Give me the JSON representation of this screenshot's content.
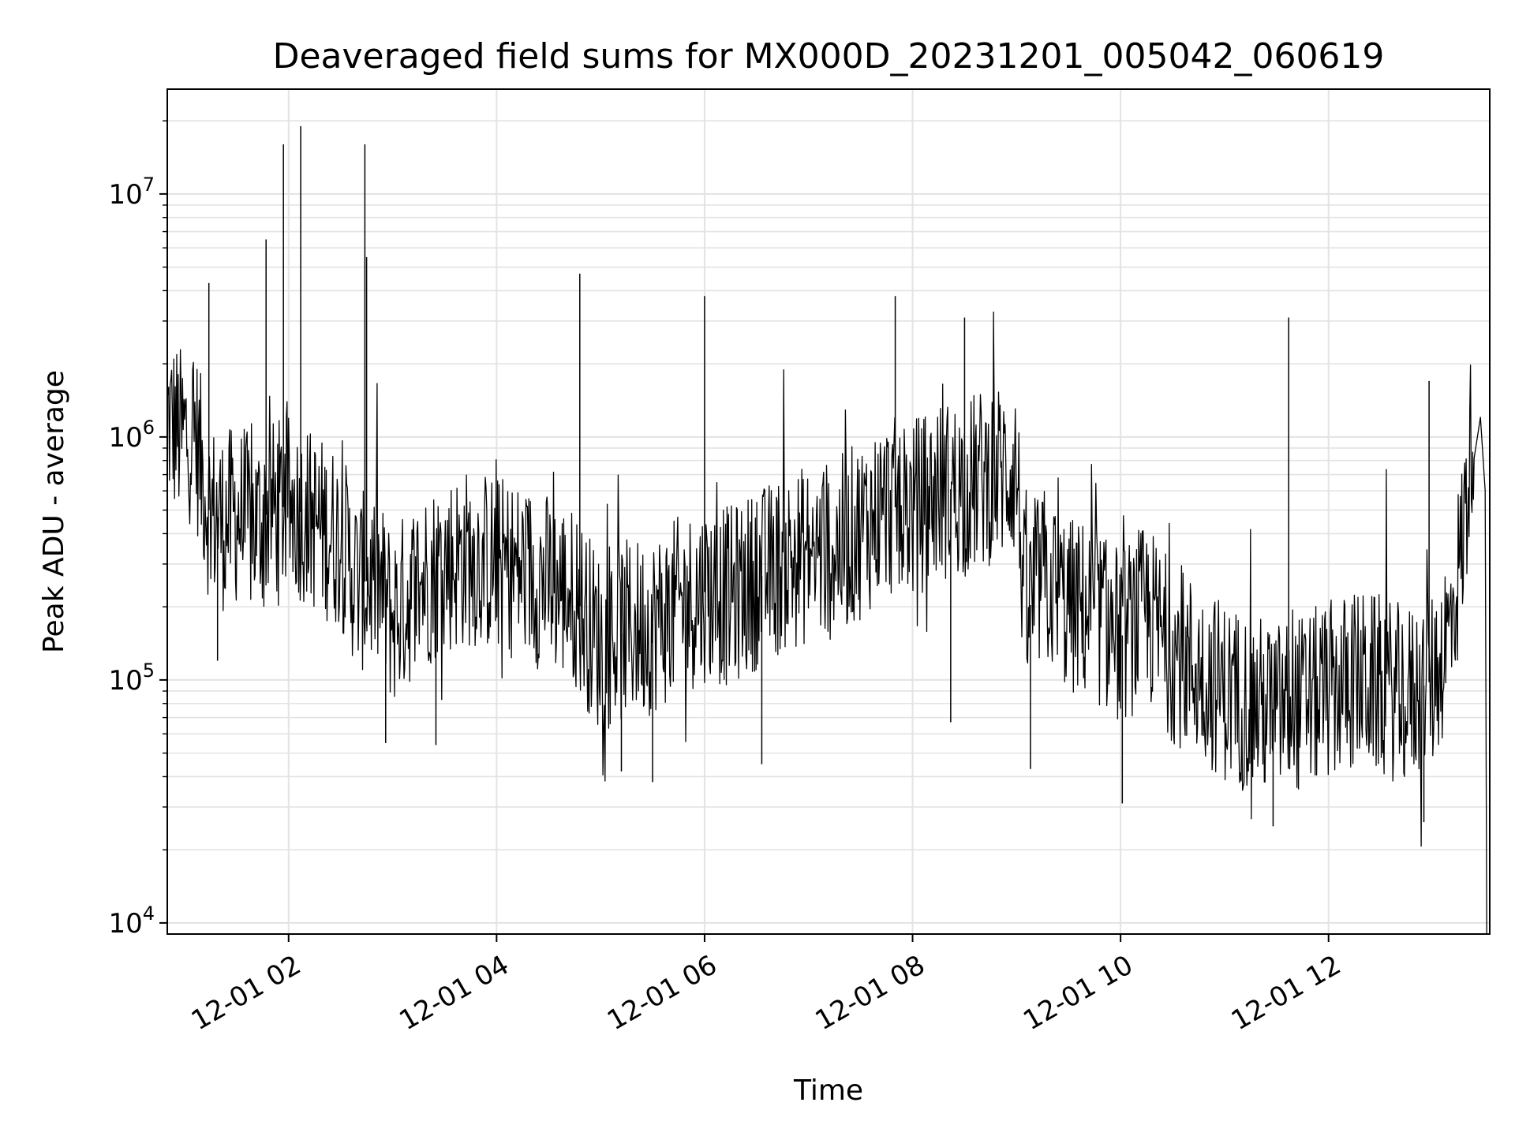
{
  "chart_data": {
    "type": "line",
    "title": "Deaveraged field sums for MX000D_20231201_005042_060619",
    "xlabel": "Time",
    "ylabel": "Peak ADU - average",
    "yscale": "log",
    "ylim": [
      9000,
      27000000
    ],
    "xlim": [
      "2023-12-01 00:50",
      "2023-12-01 13:33"
    ],
    "x_ticks": [
      {
        "value": "2023-12-01 02:00",
        "label": "12-01 02"
      },
      {
        "value": "2023-12-01 04:00",
        "label": "12-01 04"
      },
      {
        "value": "2023-12-01 06:00",
        "label": "12-01 06"
      },
      {
        "value": "2023-12-01 08:00",
        "label": "12-01 08"
      },
      {
        "value": "2023-12-01 10:00",
        "label": "12-01 10"
      },
      {
        "value": "2023-12-01 12:00",
        "label": "12-01 12"
      }
    ],
    "y_ticks": [
      {
        "value": 10000,
        "base": "10",
        "exp": "4"
      },
      {
        "value": 100000,
        "base": "10",
        "exp": "5"
      },
      {
        "value": 1000000,
        "base": "10",
        "exp": "6"
      },
      {
        "value": 10000000,
        "base": "10",
        "exp": "7"
      }
    ],
    "grid": true,
    "line_color": "#000000",
    "grid_color": "#e3e3e3",
    "series": [
      {
        "x": [
          "2023-12-01 00:50",
          "2023-12-01 00:58",
          "2023-12-01 01:06",
          "2023-12-01 01:14",
          "2023-12-01 01:22",
          "2023-12-01 01:30",
          "2023-12-01 01:40",
          "2023-12-01 01:50",
          "2023-12-01 02:00",
          "2023-12-01 02:10",
          "2023-12-01 02:20",
          "2023-12-01 02:30",
          "2023-12-01 02:40",
          "2023-12-01 02:50",
          "2023-12-01 03:00",
          "2023-12-01 03:15",
          "2023-12-01 03:30",
          "2023-12-01 03:45",
          "2023-12-01 04:00",
          "2023-12-01 04:15",
          "2023-12-01 04:30",
          "2023-12-01 04:45",
          "2023-12-01 05:00",
          "2023-12-01 05:15",
          "2023-12-01 05:30",
          "2023-12-01 05:45",
          "2023-12-01 06:00",
          "2023-12-01 06:15",
          "2023-12-01 06:30",
          "2023-12-01 06:45",
          "2023-12-01 07:00",
          "2023-12-01 07:15",
          "2023-12-01 07:30",
          "2023-12-01 07:45",
          "2023-12-01 08:00",
          "2023-12-01 08:15",
          "2023-12-01 08:30",
          "2023-12-01 08:45",
          "2023-12-01 09:00",
          "2023-12-01 09:05",
          "2023-12-01 09:15",
          "2023-12-01 09:30",
          "2023-12-01 09:45",
          "2023-12-01 10:00",
          "2023-12-01 10:15",
          "2023-12-01 10:30",
          "2023-12-01 10:45",
          "2023-12-01 11:00",
          "2023-12-01 11:15",
          "2023-12-01 11:30",
          "2023-12-01 11:45",
          "2023-12-01 12:00",
          "2023-12-01 12:15",
          "2023-12-01 12:30",
          "2023-12-01 12:45",
          "2023-12-01 13:00",
          "2023-12-01 13:10",
          "2023-12-01 13:18",
          "2023-12-01 13:24"
        ],
        "y": [
          1200000,
          1000000,
          1050000,
          500000,
          450000,
          480000,
          430000,
          500000,
          520000,
          480000,
          420000,
          380000,
          250000,
          260000,
          180000,
          250000,
          300000,
          320000,
          300000,
          280000,
          250000,
          220000,
          140000,
          160000,
          170000,
          200000,
          230000,
          220000,
          260000,
          300000,
          330000,
          340000,
          420000,
          520000,
          500000,
          600000,
          620000,
          700000,
          750000,
          180000,
          270000,
          200000,
          190000,
          150000,
          190000,
          130000,
          110000,
          90000,
          80000,
          75000,
          80000,
          90000,
          100000,
          95000,
          85000,
          100000,
          160000,
          400000,
          1400000
        ]
      }
    ],
    "spikes": [
      {
        "x": "2023-12-01 01:14",
        "y": 4300000
      },
      {
        "x": "2023-12-01 01:47",
        "y": 6500000
      },
      {
        "x": "2023-12-01 01:57",
        "y": 16000000
      },
      {
        "x": "2023-12-01 02:07",
        "y": 19000000
      },
      {
        "x": "2023-12-01 02:44",
        "y": 16000000
      },
      {
        "x": "2023-12-01 02:45",
        "y": 5500000
      },
      {
        "x": "2023-12-01 04:48",
        "y": 4700000
      },
      {
        "x": "2023-12-01 06:00",
        "y": 3800000
      },
      {
        "x": "2023-12-01 07:50",
        "y": 3800000
      },
      {
        "x": "2023-12-01 08:30",
        "y": 3100000
      },
      {
        "x": "2023-12-01 11:37",
        "y": 3100000
      },
      {
        "x": "2023-12-01 12:58",
        "y": 1700000
      }
    ],
    "dips": [
      {
        "x": "2023-12-01 01:19",
        "y": 120000
      },
      {
        "x": "2023-12-01 02:56",
        "y": 55000
      },
      {
        "x": "2023-12-01 03:25",
        "y": 54000
      },
      {
        "x": "2023-12-01 05:12",
        "y": 42000
      },
      {
        "x": "2023-12-01 05:30",
        "y": 38000
      },
      {
        "x": "2023-12-01 06:33",
        "y": 45000
      },
      {
        "x": "2023-12-01 08:22",
        "y": 67000
      },
      {
        "x": "2023-12-01 09:08",
        "y": 43000
      },
      {
        "x": "2023-12-01 10:01",
        "y": 31000
      },
      {
        "x": "2023-12-01 11:28",
        "y": 25000
      },
      {
        "x": "2023-12-01 12:55",
        "y": 26000
      }
    ]
  }
}
